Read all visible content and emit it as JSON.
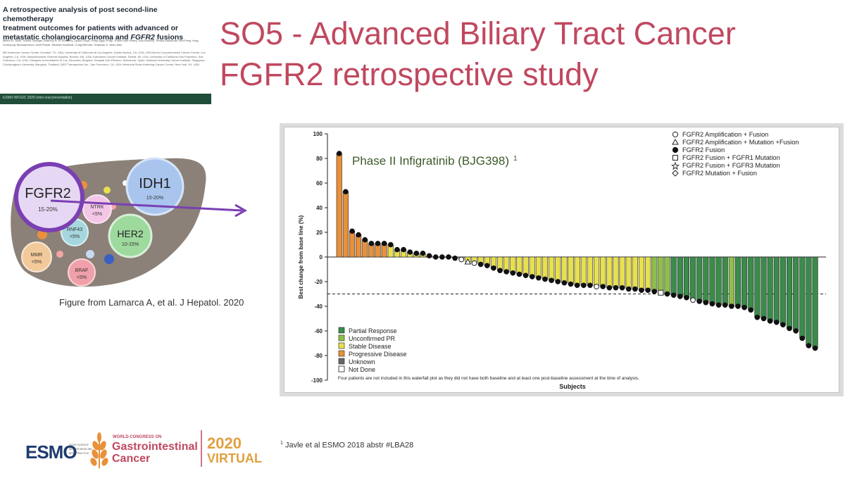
{
  "paper": {
    "title_line1": "A retrospective analysis of post second-line chemotherapy",
    "title_line2": "treatment outcomes for patients with advanced or",
    "title_line3_prefix": "metastatic cholangiocarcinoma and ",
    "title_line3_italic": "FGFR2",
    "title_line3_suffix": " fusions",
    "authors": "Milind M. Javle, Saeed Sadeghi, Anthony B. El-Khoueiry, Lipika Goyal, Philip Agop Philip, Robin Kate Kelley, Ivan Borbath, Teresa Macarulla, Wei-Peng Yong, Sunhyung Tanasanvimon, Amit Pande, Michael Howland, Craig Berman, Ghassan K. Abou-Alfa",
    "affiliations": "MD Anderson Cancer Center, Houston, TX, USA; University of California at Los Angeles, Santa Monica, CA, USA; USC/Norris Comprehensive Cancer Center, Los Angeles, CA, USA; Massachusetts General Hospital, Boston, MA, USA; Karmanos Cancer Institute, Detroit, MI, USA; University of California San Francisco, San Francisco, CA, USA; Cliniques Universitaires St Luc, Bruxelles, Belgium; Hospital Vall d'Hebron, Barcelona, Spain; National University Cancer Institute, Singapore; Chulalongkorn University, Bangkok, Thailand; QED Therapeutics Inc., San Francisco, CA, USA; Memorial Sloan Kettering Cancer Center, New York, NY, USA",
    "bar_text": "ESMO WCGIC 2020 (mini oral presentation)"
  },
  "slide": {
    "title": "SO5 - Advanced Biliary Tract Cancer",
    "subtitle": "FGFR2 retrospective study"
  },
  "liver": {
    "bubbles": [
      {
        "name": "FGFR2",
        "pct": "15-20%"
      },
      {
        "name": "IDH1",
        "pct": "15-20%"
      },
      {
        "name": "NTRK",
        "pct": "<5%"
      },
      {
        "name": "RNF43",
        "pct": "<5%"
      },
      {
        "name": "HER2",
        "pct": "10-15%"
      },
      {
        "name": "MMR",
        "pct": "<5%"
      },
      {
        "name": "BRAF",
        "pct": "<5%"
      }
    ],
    "caption": "Figure from Lamarca A, et al. J Hepatol. 2020"
  },
  "chart_data": {
    "type": "bar",
    "title": "Phase II Infigratinib (BJG398)",
    "title_sup": "1",
    "xlabel": "Subjects",
    "ylabel": "Best change from base line (%)",
    "ylim": [
      -100,
      100
    ],
    "yticks": [
      "100",
      "80",
      "60",
      "40",
      "20",
      "0",
      "-20",
      "-40",
      "-60",
      "-80",
      "-100"
    ],
    "threshold": -30,
    "colors": {
      "PD": "#e8903a",
      "SD": "#e8e04e",
      "UPR": "#8fbf4a",
      "PR": "#3a8c4a",
      "UNK": "#666666",
      "ND": "#ffffff"
    },
    "legend_response": [
      {
        "key": "PR",
        "label": "Partial Response"
      },
      {
        "key": "UPR",
        "label": "Unconfirmed PR"
      },
      {
        "key": "SD",
        "label": "Stable Disease"
      },
      {
        "key": "PD",
        "label": "Progressive Disease"
      },
      {
        "key": "UNK",
        "label": "Unknown"
      },
      {
        "key": "ND",
        "label": "Not Done"
      }
    ],
    "legend_markers": [
      {
        "symbol": "open-circle",
        "label": "FGFR2 Amplification + Fusion"
      },
      {
        "symbol": "open-triangle",
        "label": "FGFR2 Amplification + Mutation +Fusion"
      },
      {
        "symbol": "filled-circle",
        "label": "FGFR2 Fusion"
      },
      {
        "symbol": "open-square",
        "label": "FGFR2 Fusion + FGFR1 Mutation"
      },
      {
        "symbol": "open-star",
        "label": "FGFR2 Fusion + FGFR3 Mutation"
      },
      {
        "symbol": "open-diamond",
        "label": "FGFR2 Mutation + Fusion"
      }
    ],
    "footnote": "Four patients are not included in this waterfall plot as they did not have both baseline and at least one post-baseline assessment at the time of analysis.",
    "bars": [
      {
        "v": 84,
        "c": "PD",
        "m": "fc"
      },
      {
        "v": 53,
        "c": "PD",
        "m": "fc"
      },
      {
        "v": 21,
        "c": "PD",
        "m": "fc"
      },
      {
        "v": 18,
        "c": "PD",
        "m": "fc"
      },
      {
        "v": 14,
        "c": "PD",
        "m": "fc"
      },
      {
        "v": 11,
        "c": "PD",
        "m": "fc"
      },
      {
        "v": 11,
        "c": "PD",
        "m": "fc"
      },
      {
        "v": 11,
        "c": "PD",
        "m": "fc"
      },
      {
        "v": 10,
        "c": "SD",
        "m": "fc"
      },
      {
        "v": 6,
        "c": "SD",
        "m": "fc"
      },
      {
        "v": 6,
        "c": "SD",
        "m": "fc"
      },
      {
        "v": 4,
        "c": "SD",
        "m": "fc"
      },
      {
        "v": 3,
        "c": "SD",
        "m": "fc"
      },
      {
        "v": 3,
        "c": "SD",
        "m": "fc"
      },
      {
        "v": 1,
        "c": "SD",
        "m": "fc"
      },
      {
        "v": 0,
        "c": "SD",
        "m": "fc"
      },
      {
        "v": 0,
        "c": "SD",
        "m": "fc"
      },
      {
        "v": 0,
        "c": "SD",
        "m": "fc"
      },
      {
        "v": -1,
        "c": "SD",
        "m": "fc"
      },
      {
        "v": -2,
        "c": "SD",
        "m": "oc"
      },
      {
        "v": -4,
        "c": "SD",
        "m": "ot"
      },
      {
        "v": -5,
        "c": "SD",
        "m": "oc"
      },
      {
        "v": -6,
        "c": "SD",
        "m": "fc"
      },
      {
        "v": -7,
        "c": "SD",
        "m": "fc"
      },
      {
        "v": -9,
        "c": "SD",
        "m": "fc"
      },
      {
        "v": -11,
        "c": "SD",
        "m": "fc"
      },
      {
        "v": -12,
        "c": "SD",
        "m": "fc"
      },
      {
        "v": -13,
        "c": "SD",
        "m": "fc"
      },
      {
        "v": -14,
        "c": "SD",
        "m": "fc"
      },
      {
        "v": -15,
        "c": "SD",
        "m": "fc"
      },
      {
        "v": -16,
        "c": "SD",
        "m": "fc"
      },
      {
        "v": -17,
        "c": "SD",
        "m": "fc"
      },
      {
        "v": -18,
        "c": "SD",
        "m": "fc"
      },
      {
        "v": -19,
        "c": "SD",
        "m": "fc"
      },
      {
        "v": -20,
        "c": "SD",
        "m": "fc"
      },
      {
        "v": -21,
        "c": "SD",
        "m": "fc"
      },
      {
        "v": -22,
        "c": "SD",
        "m": "fc"
      },
      {
        "v": -23,
        "c": "SD",
        "m": "fc"
      },
      {
        "v": -23,
        "c": "SD",
        "m": "fc"
      },
      {
        "v": -23,
        "c": "SD",
        "m": "fc"
      },
      {
        "v": -24,
        "c": "SD",
        "m": "oc"
      },
      {
        "v": -24,
        "c": "SD",
        "m": "fc"
      },
      {
        "v": -25,
        "c": "SD",
        "m": "fc"
      },
      {
        "v": -25,
        "c": "SD",
        "m": "fc"
      },
      {
        "v": -25,
        "c": "SD",
        "m": "fc"
      },
      {
        "v": -26,
        "c": "SD",
        "m": "fc"
      },
      {
        "v": -26,
        "c": "SD",
        "m": "fc"
      },
      {
        "v": -27,
        "c": "SD",
        "m": "fc"
      },
      {
        "v": -27,
        "c": "SD",
        "m": "fc"
      },
      {
        "v": -28,
        "c": "UPR",
        "m": "fc"
      },
      {
        "v": -29,
        "c": "UPR",
        "m": "os"
      },
      {
        "v": -30,
        "c": "UPR",
        "m": "fc"
      },
      {
        "v": -31,
        "c": "PR",
        "m": "fc"
      },
      {
        "v": -32,
        "c": "PR",
        "m": "fc"
      },
      {
        "v": -33,
        "c": "PR",
        "m": "fc"
      },
      {
        "v": -35,
        "c": "PR",
        "m": "oc"
      },
      {
        "v": -36,
        "c": "PR",
        "m": "fc"
      },
      {
        "v": -37,
        "c": "PR",
        "m": "fc"
      },
      {
        "v": -38,
        "c": "PR",
        "m": "fc"
      },
      {
        "v": -39,
        "c": "PR",
        "m": "fc"
      },
      {
        "v": -39,
        "c": "PR",
        "m": "fc"
      },
      {
        "v": -40,
        "c": "UPR",
        "m": "fc"
      },
      {
        "v": -40,
        "c": "PR",
        "m": "fc"
      },
      {
        "v": -41,
        "c": "PR",
        "m": "fc"
      },
      {
        "v": -43,
        "c": "PR",
        "m": "fc"
      },
      {
        "v": -49,
        "c": "PR",
        "m": "fc"
      },
      {
        "v": -50,
        "c": "PR",
        "m": "fc"
      },
      {
        "v": -52,
        "c": "PR",
        "m": "fc"
      },
      {
        "v": -53,
        "c": "PR",
        "m": "fc"
      },
      {
        "v": -55,
        "c": "PR",
        "m": "fc"
      },
      {
        "v": -58,
        "c": "PR",
        "m": "fc"
      },
      {
        "v": -60,
        "c": "PR",
        "m": "fc"
      },
      {
        "v": -66,
        "c": "PR",
        "m": "fc"
      },
      {
        "v": -72,
        "c": "PR",
        "m": "fc"
      },
      {
        "v": -74,
        "c": "PR",
        "m": "fc"
      }
    ]
  },
  "footer": {
    "esmo": "ESMO",
    "esmo_tag_1": "GOOD SCIENCE",
    "esmo_tag_2": "BETTER MEDICINE",
    "esmo_tag_3": "BEST PRACTICE",
    "congress_small": "WORLD CONGRESS ON",
    "congress_line1": "Gastrointestinal",
    "congress_line2": "Cancer",
    "year": "2020",
    "virtual": "VIRTUAL",
    "footnote_sup": "1",
    "footnote": "Javle et al ESMO 2018 abstr #LBA28"
  }
}
